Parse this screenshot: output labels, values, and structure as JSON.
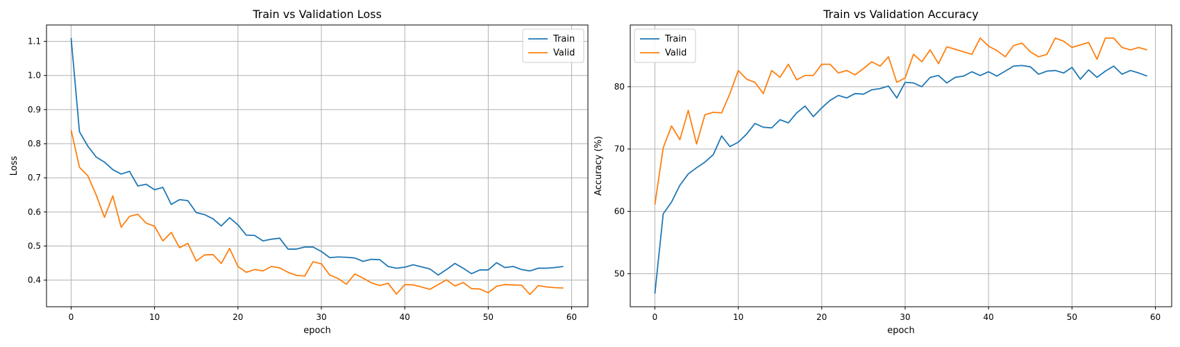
{
  "chart_data": [
    {
      "type": "line",
      "title": "Train vs Validation Loss",
      "xlabel": "epoch",
      "ylabel": "Loss",
      "xlim": [
        -2.95,
        61.95
      ],
      "ylim": [
        0.322,
        1.148
      ],
      "xticks": [
        0,
        10,
        20,
        30,
        40,
        50,
        60
      ],
      "yticks": [
        0.4,
        0.5,
        0.6,
        0.7,
        0.8,
        0.9,
        1.0,
        1.1
      ],
      "grid": true,
      "legend": "upper right",
      "series": [
        {
          "name": "Train",
          "color": "#1f77b4",
          "values": [
            1.11,
            0.835,
            0.793,
            0.761,
            0.746,
            0.724,
            0.711,
            0.719,
            0.676,
            0.681,
            0.665,
            0.672,
            0.622,
            0.636,
            0.633,
            0.598,
            0.592,
            0.58,
            0.559,
            0.583,
            0.562,
            0.532,
            0.531,
            0.515,
            0.52,
            0.523,
            0.491,
            0.491,
            0.497,
            0.497,
            0.484,
            0.466,
            0.468,
            0.467,
            0.465,
            0.455,
            0.461,
            0.46,
            0.44,
            0.435,
            0.438,
            0.445,
            0.439,
            0.433,
            0.415,
            0.431,
            0.449,
            0.435,
            0.419,
            0.43,
            0.43,
            0.451,
            0.437,
            0.44,
            0.431,
            0.427,
            0.435,
            0.435,
            0.437,
            0.44
          ]
        },
        {
          "name": "Valid",
          "color": "#ff7f0e",
          "values": [
            0.84,
            0.731,
            0.706,
            0.65,
            0.584,
            0.647,
            0.555,
            0.587,
            0.593,
            0.567,
            0.558,
            0.515,
            0.54,
            0.495,
            0.508,
            0.456,
            0.474,
            0.475,
            0.449,
            0.493,
            0.44,
            0.423,
            0.431,
            0.427,
            0.44,
            0.436,
            0.423,
            0.414,
            0.412,
            0.454,
            0.448,
            0.415,
            0.405,
            0.388,
            0.418,
            0.406,
            0.392,
            0.384,
            0.391,
            0.359,
            0.387,
            0.386,
            0.38,
            0.373,
            0.387,
            0.401,
            0.383,
            0.393,
            0.375,
            0.374,
            0.363,
            0.382,
            0.387,
            0.386,
            0.385,
            0.358,
            0.384,
            0.38,
            0.378,
            0.377
          ]
        }
      ]
    },
    {
      "type": "line",
      "title": "Train vs Validation Accuracy",
      "xlabel": "epoch",
      "ylabel": "Accuracy (%)",
      "xlim": [
        -2.95,
        61.95
      ],
      "ylim": [
        44.7,
        89.9
      ],
      "xticks": [
        0,
        10,
        20,
        30,
        40,
        50,
        60
      ],
      "yticks": [
        50,
        60,
        70,
        80
      ],
      "grid": true,
      "legend": "upper left",
      "series": [
        {
          "name": "Train",
          "color": "#1f77b4",
          "values": [
            46.8,
            59.6,
            61.5,
            64.2,
            66.0,
            67.0,
            67.9,
            69.1,
            72.1,
            70.4,
            71.1,
            72.4,
            74.1,
            73.5,
            73.4,
            74.7,
            74.2,
            75.8,
            76.9,
            75.2,
            76.6,
            77.8,
            78.6,
            78.2,
            78.9,
            78.8,
            79.5,
            79.7,
            80.1,
            78.2,
            80.7,
            80.6,
            80.0,
            81.5,
            81.8,
            80.6,
            81.5,
            81.7,
            82.4,
            81.8,
            82.4,
            81.7,
            82.5,
            83.3,
            83.4,
            83.2,
            82.0,
            82.5,
            82.6,
            82.2,
            83.1,
            81.2,
            82.7,
            81.5,
            82.5,
            83.3,
            82.0,
            82.6,
            82.2,
            81.7
          ]
        },
        {
          "name": "Valid",
          "color": "#ff7f0e",
          "values": [
            61.1,
            70.2,
            73.7,
            71.5,
            76.2,
            70.8,
            75.5,
            75.9,
            75.8,
            78.9,
            82.6,
            81.2,
            80.7,
            78.9,
            82.6,
            81.5,
            83.6,
            81.1,
            81.8,
            81.8,
            83.6,
            83.6,
            82.2,
            82.6,
            81.9,
            82.9,
            84.0,
            83.3,
            84.8,
            80.7,
            81.4,
            85.2,
            84.0,
            85.9,
            83.7,
            86.4,
            86.0,
            85.6,
            85.2,
            87.8,
            86.5,
            85.8,
            84.8,
            86.6,
            87.0,
            85.6,
            84.8,
            85.2,
            87.8,
            87.3,
            86.3,
            86.7,
            87.1,
            84.4,
            87.8,
            87.8,
            86.3,
            85.9,
            86.3,
            85.9
          ]
        }
      ]
    }
  ]
}
